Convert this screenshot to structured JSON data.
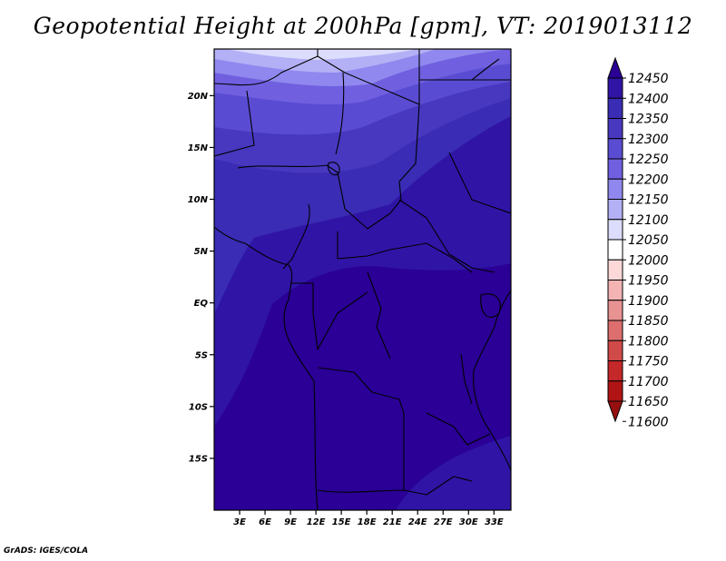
{
  "title": "Geopotential Height at 200hPa [gpm], VT: 2019013112",
  "credit": "GrADS: IGES/COLA",
  "chart_data": {
    "type": "heatmap",
    "title": "Geopotential Height at 200hPa [gpm], VT: 2019013112",
    "lon_range": [
      0,
      35
    ],
    "lat_range": [
      -20,
      24.5
    ],
    "lat_ticks": [
      {
        "value": 20,
        "label": "20N"
      },
      {
        "value": 15,
        "label": "15N"
      },
      {
        "value": 10,
        "label": "10N"
      },
      {
        "value": 5,
        "label": "5N"
      },
      {
        "value": 0,
        "label": "EQ"
      },
      {
        "value": -5,
        "label": "5S"
      },
      {
        "value": -10,
        "label": "10S"
      },
      {
        "value": -15,
        "label": "15S"
      }
    ],
    "lon_ticks": [
      {
        "value": 3,
        "label": "3E"
      },
      {
        "value": 6,
        "label": "6E"
      },
      {
        "value": 9,
        "label": "9E"
      },
      {
        "value": 12,
        "label": "12E"
      },
      {
        "value": 15,
        "label": "15E"
      },
      {
        "value": 18,
        "label": "18E"
      },
      {
        "value": 21,
        "label": "21E"
      },
      {
        "value": 24,
        "label": "24E"
      },
      {
        "value": 27,
        "label": "27E"
      },
      {
        "value": 30,
        "label": "30E"
      },
      {
        "value": 33,
        "label": "33E"
      }
    ],
    "colorbar": {
      "levels": [
        12450,
        12400,
        12350,
        12300,
        12250,
        12200,
        12150,
        12100,
        12050,
        12000,
        11950,
        11900,
        11850,
        11800,
        11750,
        11700,
        11650,
        11600
      ],
      "labels": [
        "12450",
        "12400",
        "12350",
        "12300",
        "12250",
        "12200",
        "12150",
        "12100",
        "12050",
        "12000",
        "11950",
        "11900",
        "11850",
        "11800",
        "11750",
        "11700",
        "11650",
        "11600"
      ],
      "colors": [
        "#2a0096",
        "#3014a6",
        "#3a2cb4",
        "#4838c0",
        "#5a4cd2",
        "#7060e0",
        "#9088ee",
        "#b4b0f6",
        "#dcdcfc",
        "#ffffff",
        "#fcd8d8",
        "#f4b4b4",
        "#e89292",
        "#dc6e6e",
        "#d04a4a",
        "#c42828",
        "#b01414",
        "#961010"
      ]
    },
    "field_bands_from_north": [
      "#dcdcfc",
      "#b4b0f6",
      "#9088ee",
      "#7060e0",
      "#5a4cd2",
      "#4838c0",
      "#3a2cb4",
      "#3014a6",
      "#2a0096"
    ]
  }
}
